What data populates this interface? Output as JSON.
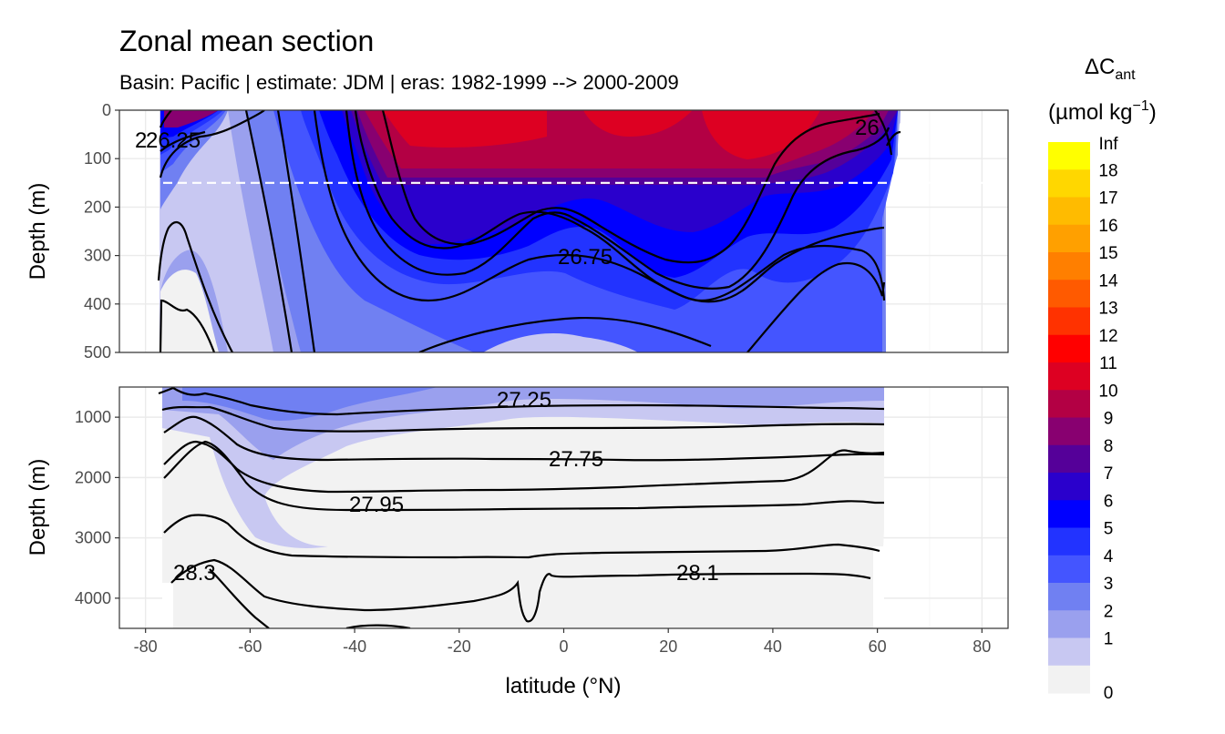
{
  "chart_data": {
    "type": "heatmap",
    "title": "Zonal mean section",
    "subtitle": "Basin: Pacific | estimate: JDM  | eras: 1982-1999 --> 2000-2009",
    "xlabel": "latitude (°N)",
    "ylabel": "Depth (m)",
    "x_range": [
      -85,
      85
    ],
    "x_ticks": [
      -80,
      -60,
      -40,
      -20,
      0,
      20,
      40,
      60,
      80
    ],
    "data_lat_range": [
      -78,
      65
    ],
    "reference_depth_line": 150,
    "panels": [
      {
        "name": "upper",
        "depth_range": [
          0,
          500
        ],
        "y_ticks": [
          0,
          100,
          200,
          300,
          400,
          500
        ],
        "isopycnal_labels": [
          "26.25",
          "26",
          "26.75",
          "2"
        ]
      },
      {
        "name": "lower",
        "depth_range": [
          500,
          4500
        ],
        "y_ticks": [
          1000,
          2000,
          3000,
          4000
        ],
        "isopycnal_labels": [
          "27.25",
          "27.75",
          "27.95",
          "28.3",
          "28.1"
        ]
      }
    ],
    "legend": {
      "title": "ΔC",
      "title_subscript": "ant",
      "unit_prefix": "(µmol kg",
      "unit_superscript": "−1",
      "unit_suffix": ")",
      "breaks": [
        "Inf",
        "18",
        "17",
        "16",
        "15",
        "14",
        "13",
        "12",
        "11",
        "10",
        "9",
        "8",
        "7",
        "6",
        "5",
        "4",
        "3",
        "2",
        "1",
        "0"
      ],
      "colors": [
        "#ffff00",
        "#ffd700",
        "#ffbb00",
        "#ffa000",
        "#ff7f00",
        "#ff5a00",
        "#ff3200",
        "#ff0000",
        "#dd0022",
        "#b30044",
        "#880070",
        "#550099",
        "#2a00cc",
        "#0000ff",
        "#2233ff",
        "#4455ff",
        "#7080f2",
        "#9aa0ee",
        "#c8c8f2",
        "#f2f2f2"
      ]
    }
  }
}
